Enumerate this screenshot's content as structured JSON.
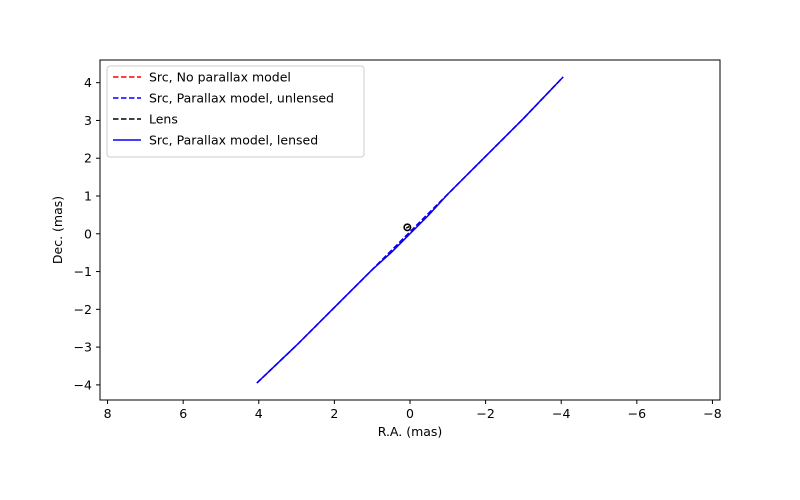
{
  "chart_data": {
    "type": "line",
    "title": "",
    "xlabel": "R.A. (mas)",
    "ylabel": "Dec. (mas)",
    "xlim": [
      8.2,
      -8.2
    ],
    "ylim": [
      -4.4,
      4.6
    ],
    "x_inverted": true,
    "grid": false,
    "legend_position": "top-left",
    "xticks": [
      8,
      6,
      4,
      2,
      0,
      -2,
      -4,
      -6,
      -8
    ],
    "yticks": [
      -4,
      -3,
      -2,
      -1,
      0,
      1,
      2,
      3,
      4
    ],
    "xtick_labels": [
      "8",
      "6",
      "4",
      "2",
      "0",
      "−2",
      "−4",
      "−6",
      "−8"
    ],
    "ytick_labels": [
      "−4",
      "−3",
      "−2",
      "−1",
      "0",
      "1",
      "2",
      "3",
      "4"
    ],
    "series": [
      {
        "name": "Src, No parallax model",
        "color": "#ff0000",
        "style": "dashed",
        "x": [
          4.05,
          3.0,
          2.0,
          1.0,
          0.5,
          0.2,
          -0.2,
          -0.5,
          -1.0,
          -2.0,
          -3.0,
          -4.05
        ],
        "y": [
          -3.95,
          -2.95,
          -1.95,
          -0.95,
          -0.45,
          -0.15,
          0.25,
          0.55,
          1.05,
          2.05,
          3.05,
          4.15
        ]
      },
      {
        "name": "Src, Parallax model, unlensed",
        "color": "#0000ff",
        "style": "dashed",
        "x": [
          4.05,
          3.0,
          2.0,
          1.0,
          0.5,
          0.2,
          -0.2,
          -0.5,
          -1.0,
          -2.0,
          -3.0,
          -4.05
        ],
        "y": [
          -3.95,
          -2.95,
          -1.95,
          -0.95,
          -0.45,
          -0.15,
          0.25,
          0.55,
          1.05,
          2.05,
          3.05,
          4.15
        ]
      },
      {
        "name": "Lens",
        "color": "#000000",
        "style": "dashed",
        "x": [
          0.1,
          0.08,
          0.06,
          0.04,
          0.02
        ],
        "y": [
          0.15,
          0.16,
          0.17,
          0.18,
          0.19
        ]
      },
      {
        "name": "Src, Parallax model, lensed",
        "color": "#0000ff",
        "style": "solid",
        "x": [
          4.05,
          3.0,
          2.0,
          1.0,
          0.5,
          0.2,
          0.0,
          -0.2,
          -0.5,
          -1.0,
          -2.0,
          -3.0,
          -4.05
        ],
        "y": [
          -3.95,
          -2.95,
          -1.95,
          -0.95,
          -0.5,
          -0.2,
          0.0,
          0.2,
          0.5,
          1.05,
          2.05,
          3.05,
          4.15
        ]
      }
    ],
    "markers": [
      {
        "label": "lens-marker",
        "x": 0.07,
        "y": 0.17,
        "color": "#000000"
      }
    ]
  }
}
